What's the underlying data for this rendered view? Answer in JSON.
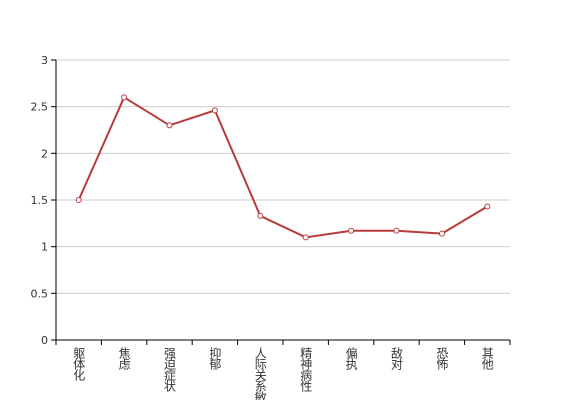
{
  "chart_data": {
    "type": "line",
    "categories": [
      "躯体化",
      "焦虑",
      "强迫症状",
      "抑郁",
      "人际关系敏感",
      "精神病性",
      "偏执",
      "敌对",
      "恐怖",
      "其他"
    ],
    "values": [
      1.5,
      2.6,
      2.3,
      2.46,
      1.33,
      1.1,
      1.17,
      1.17,
      1.14,
      1.43
    ],
    "color": "#b83b3b",
    "ylim": [
      0,
      3
    ],
    "yticks": [
      0,
      0.5,
      1,
      1.5,
      2,
      2.5,
      3
    ],
    "grid": true
  }
}
